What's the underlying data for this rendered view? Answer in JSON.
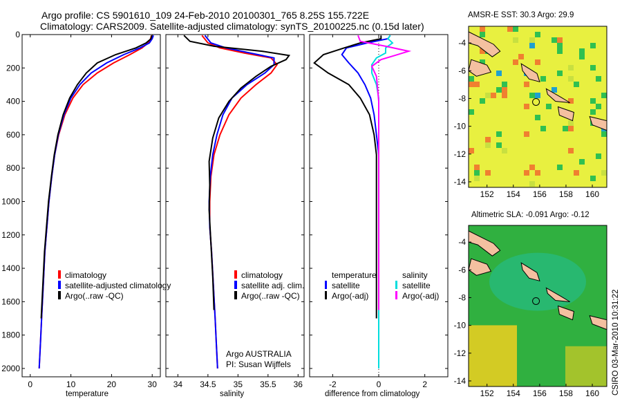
{
  "header": {
    "line1": "Argo profile: CS 5901610_109 24-Feb-2010 20100301_765 8.25S 155.722E",
    "line2": "Climatology: CARS2009. Satellite-adjusted climatology: synTS_20100225.nc (0.15d later)"
  },
  "chart_data": [
    {
      "type": "line",
      "xlabel": "temperature",
      "xlim": [
        -2,
        32
      ],
      "ylim": [
        0,
        2050
      ],
      "y_reversed": true,
      "xticks": [
        0,
        10,
        20,
        30
      ],
      "yticks": [
        0,
        200,
        400,
        600,
        800,
        1000,
        1200,
        1400,
        1600,
        1800,
        2000
      ],
      "legend": [
        "climatology",
        "satellite-adjusted climatology",
        "Argo(..raw -QC)"
      ],
      "legend_placement": "lower-middle",
      "series": [
        {
          "name": "climatology",
          "color": "#ff0000",
          "x": [
            29.8,
            29.6,
            29.0,
            27.5,
            24.5,
            20.5,
            16.5,
            13.0,
            10.5,
            8.5,
            7.0,
            6.0,
            5.3,
            4.6,
            4.1,
            3.6,
            3.2,
            2.8,
            2.5,
            2.2
          ],
          "y": [
            5,
            25,
            50,
            80,
            120,
            170,
            230,
            300,
            380,
            480,
            600,
            720,
            850,
            1000,
            1150,
            1300,
            1500,
            1700,
            1850,
            2000
          ]
        },
        {
          "name": "satellite-adjusted climatology",
          "color": "#0000ff",
          "x": [
            30.3,
            30.0,
            29.3,
            27.0,
            23.0,
            18.8,
            15.0,
            12.2,
            10.0,
            8.3,
            6.9,
            6.0,
            5.3,
            4.6,
            4.1,
            3.6,
            3.2,
            2.8,
            2.5,
            2.2
          ],
          "y": [
            5,
            25,
            50,
            80,
            120,
            170,
            230,
            300,
            380,
            480,
            600,
            720,
            850,
            1000,
            1150,
            1300,
            1500,
            1700,
            1850,
            2000
          ]
        },
        {
          "name": "Argo(..raw -QC)",
          "color": "#000000",
          "x": [
            29.9,
            29.7,
            28.5,
            26.0,
            21.0,
            16.5,
            13.8,
            11.6,
            9.7,
            8.1,
            6.8,
            5.9,
            5.2,
            4.5,
            4.0,
            3.5,
            3.1,
            2.7
          ],
          "y": [
            5,
            25,
            50,
            80,
            120,
            170,
            230,
            300,
            380,
            480,
            600,
            720,
            850,
            1000,
            1150,
            1300,
            1500,
            1700
          ]
        }
      ]
    },
    {
      "type": "line",
      "xlabel": "salinity",
      "xlim": [
        33.8,
        36.1
      ],
      "ylim": [
        0,
        2050
      ],
      "y_reversed": true,
      "xticks": [
        34,
        34.5,
        35,
        35.5,
        36
      ],
      "legend": [
        "climatology",
        "satellite adj. clim.",
        "Argo(..raw -QC)"
      ],
      "legend_placement": "lower-right",
      "annotation": [
        "Argo AUSTRALIA",
        "PI: Susan Wijffels"
      ],
      "series": [
        {
          "name": "climatology",
          "color": "#ff0000",
          "x": [
            34.4,
            34.5,
            34.7,
            35.1,
            35.55,
            35.65,
            35.55,
            35.3,
            35.05,
            34.85,
            34.7,
            34.6,
            34.55,
            34.53,
            34.53,
            34.56,
            34.59,
            34.62,
            34.64,
            34.66
          ],
          "y": [
            5,
            50,
            80,
            110,
            140,
            180,
            230,
            300,
            380,
            480,
            600,
            720,
            850,
            1000,
            1150,
            1300,
            1500,
            1700,
            1850,
            2000
          ]
        },
        {
          "name": "satellite adj. clim.",
          "color": "#0000ff",
          "x": [
            34.45,
            34.55,
            34.8,
            35.2,
            35.6,
            35.6,
            35.45,
            35.15,
            34.9,
            34.75,
            34.65,
            34.58,
            34.54,
            34.52,
            34.53,
            34.56,
            34.59,
            34.62,
            34.64,
            34.66
          ],
          "y": [
            5,
            50,
            80,
            110,
            140,
            180,
            230,
            300,
            380,
            480,
            600,
            720,
            850,
            1000,
            1150,
            1300,
            1500,
            1700,
            1850,
            2000
          ]
        },
        {
          "name": "Argo(..raw -QC)",
          "color": "#000000",
          "x": [
            34.1,
            34.2,
            34.6,
            35.4,
            35.85,
            35.8,
            35.55,
            35.3,
            35.05,
            34.85,
            34.68,
            34.58,
            34.52,
            34.53,
            34.52,
            34.55,
            34.58,
            34.6
          ],
          "y": [
            5,
            40,
            70,
            100,
            125,
            150,
            190,
            250,
            320,
            400,
            500,
            620,
            760,
            900,
            1050,
            1250,
            1450,
            1650
          ]
        }
      ]
    },
    {
      "type": "line",
      "xlabel": "difference from climatology",
      "xlim": [
        -3,
        3
      ],
      "ylim": [
        0,
        2050
      ],
      "y_reversed": true,
      "xticks": [
        -2,
        0,
        2
      ],
      "legend": [
        "temperature",
        "satellite",
        "Argo(-adj)",
        "salinity",
        "satellite",
        "Argo(-adj)"
      ],
      "legend_placement": "lower-middle",
      "series": [
        {
          "name": "satellite",
          "group": "temperature",
          "color": "#0000ff",
          "x": [
            0.5,
            0.4,
            -0.5,
            -1.4,
            -1.6,
            -1.3,
            -0.9,
            -0.6,
            -0.35,
            -0.2,
            -0.1,
            0,
            0,
            0,
            0,
            0,
            0,
            0,
            0,
            0
          ],
          "y": [
            5,
            25,
            50,
            80,
            120,
            170,
            230,
            300,
            380,
            480,
            600,
            720,
            850,
            1000,
            1150,
            1300,
            1500,
            1700,
            1850,
            2000
          ]
        },
        {
          "name": "Argo(-adj)",
          "group": "temperature",
          "color": "#000000",
          "x": [
            0.1,
            0.1,
            -0.8,
            -1.5,
            -2.4,
            -2.8,
            -2.2,
            -1.3,
            -0.8,
            -0.4,
            -0.2,
            -0.1,
            -0.1,
            -0.1,
            -0.1,
            -0.1,
            -0.1,
            -0.1
          ],
          "y": [
            5,
            25,
            50,
            80,
            120,
            170,
            230,
            300,
            380,
            480,
            600,
            720,
            850,
            1000,
            1150,
            1300,
            1500,
            1700
          ]
        },
        {
          "name": "satellite",
          "group": "salinity",
          "color": "#00dddd",
          "x": [
            0.5,
            0.4,
            0.6,
            0.3,
            0.3,
            -0.1,
            -0.3,
            -0.3,
            -0.1,
            0,
            0,
            0,
            0,
            0,
            0,
            0,
            0,
            0,
            0,
            0
          ],
          "y": [
            5,
            25,
            50,
            80,
            110,
            140,
            180,
            230,
            300,
            380,
            480,
            600,
            720,
            850,
            1000,
            1150,
            1300,
            1500,
            1700,
            2000
          ]
        },
        {
          "name": "Argo(-adj)",
          "group": "salinity",
          "color": "#ff00ff",
          "x": [
            -0.9,
            -0.8,
            0.3,
            1.3,
            0.7,
            0.1,
            -0.3,
            -0.1,
            -0.05,
            0,
            0,
            0,
            0,
            0,
            0,
            0,
            0,
            0
          ],
          "y": [
            5,
            40,
            70,
            100,
            125,
            150,
            190,
            250,
            320,
            400,
            500,
            620,
            760,
            900,
            1050,
            1250,
            1450,
            1650
          ]
        }
      ]
    },
    {
      "type": "heatmap",
      "title": "AMSR-E SST: 30.3 Argo: 29.9",
      "xlim": [
        150.6,
        161.1
      ],
      "ylim": [
        -14.4,
        -2.8
      ],
      "xticks": [
        152,
        154,
        156,
        158,
        160
      ],
      "yticks": [
        -4,
        -6,
        -8,
        -10,
        -12,
        -14
      ],
      "marker": {
        "lon": 155.722,
        "lat": -8.25
      },
      "colors": {
        "base": "#e8f040",
        "warm": "#f08030",
        "cool": "#30c050",
        "cold": "#20a0d0",
        "land": "#f4c0a0"
      }
    },
    {
      "type": "heatmap",
      "title": "Altimetric SLA: -0.091 Argo: -0.12",
      "xlim": [
        150.6,
        161.1
      ],
      "ylim": [
        -14.4,
        -2.8
      ],
      "xticks": [
        152,
        154,
        156,
        158,
        160
      ],
      "yticks": [
        -4,
        -6,
        -8,
        -10,
        -12,
        -14
      ],
      "marker": {
        "lon": 155.722,
        "lat": -8.25
      },
      "colors": {
        "base": "#30b040",
        "high": "#f0d020",
        "low": "#20c0a0",
        "land": "#f4c0a0"
      }
    }
  ],
  "footer": {
    "stamp": "CSIRO 03-Mar-2010 10:31:22"
  }
}
